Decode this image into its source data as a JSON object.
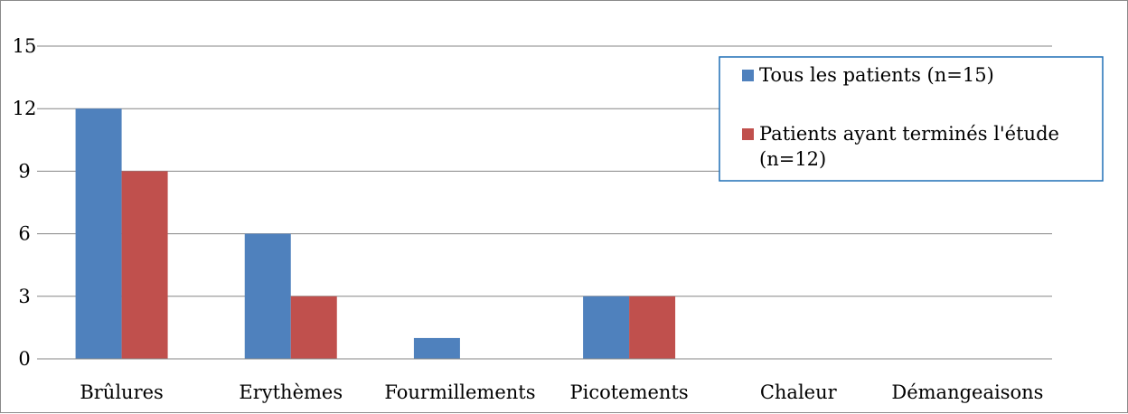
{
  "chart_data": {
    "type": "bar",
    "categories": [
      "Brûlures",
      "Erythèmes",
      "Fourmillements",
      "Picotements",
      "Chaleur",
      "Démangeaisons"
    ],
    "series": [
      {
        "name": "Tous les patients (n=15)",
        "values": [
          12,
          6,
          1,
          3,
          0,
          0
        ],
        "color": "#4F81BD"
      },
      {
        "name": "Patients ayant terminés l'étude (n=12)",
        "values": [
          9,
          3,
          0,
          3,
          0,
          0
        ],
        "color": "#C0504D"
      }
    ],
    "yticks": [
      0,
      3,
      6,
      9,
      12,
      15
    ],
    "ylim": [
      0,
      15
    ],
    "grid": true,
    "legend_position": "top-right",
    "legend_border_color": "#1F6FB5"
  }
}
